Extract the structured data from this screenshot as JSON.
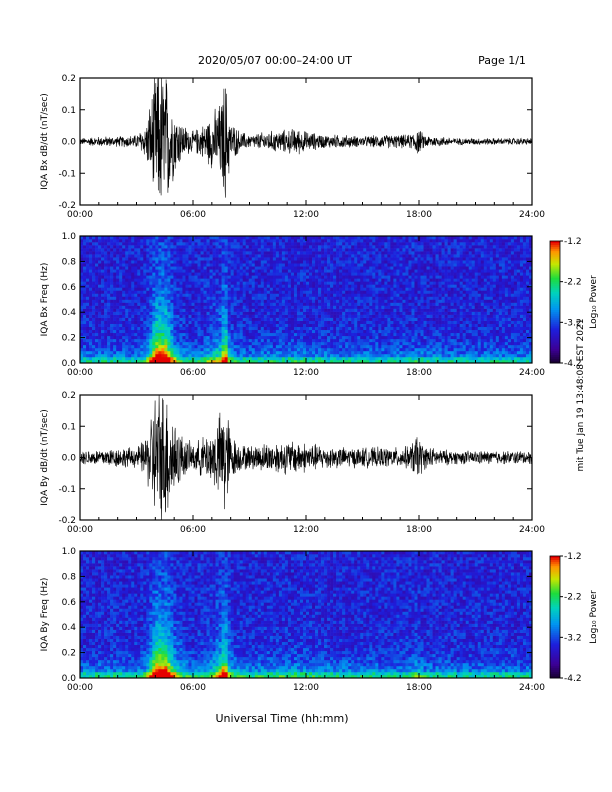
{
  "header": {
    "title": "2020/05/07  00:00–24:00 UT",
    "page": "Page 1/1"
  },
  "side_note": "mit Tue Jan 19 13:48:08 EST 2021",
  "footer": {
    "xlabel": "Universal Time (hh:mm)"
  },
  "colorbar": {
    "ticks": [
      "-1.2",
      "-2.2",
      "-3.2",
      "-4.2"
    ],
    "label": "Log₁₀ Power"
  },
  "chart_data": [
    {
      "type": "line",
      "title": "",
      "xlabel": "",
      "ylabel": "IQA Bx dB/dt (nT/sec)",
      "xticks": [
        "00:00",
        "06:00",
        "12:00",
        "18:00",
        "24:00"
      ],
      "yticks": [
        "0.2",
        "0.1",
        "0.0",
        "-0.1",
        "-0.2"
      ],
      "xlim": [
        0,
        24
      ],
      "ylim": [
        -0.2,
        0.2
      ],
      "envelope": {
        "x": [
          0,
          1,
          2,
          3,
          3.5,
          4.0,
          4.3,
          4.6,
          5.0,
          5.5,
          6,
          6.5,
          7.0,
          7.5,
          7.7,
          8.0,
          8.5,
          9,
          10,
          11,
          11.5,
          12,
          13,
          14,
          15,
          16,
          17,
          17.5,
          17.9,
          18.3,
          19,
          20,
          21,
          22,
          23,
          24
        ],
        "amp": [
          0.01,
          0.015,
          0.015,
          0.02,
          0.05,
          0.2,
          0.22,
          0.2,
          0.1,
          0.05,
          0.03,
          0.05,
          0.08,
          0.12,
          0.2,
          0.06,
          0.03,
          0.02,
          0.03,
          0.035,
          0.04,
          0.03,
          0.02,
          0.02,
          0.015,
          0.02,
          0.02,
          0.02,
          0.04,
          0.02,
          0.015,
          0.01,
          0.01,
          0.01,
          0.01,
          0.01
        ]
      }
    },
    {
      "type": "heatmap",
      "title": "",
      "xlabel": "",
      "ylabel": "IQA Bx Freq (Hz)",
      "xticks": [
        "00:00",
        "06:00",
        "12:00",
        "18:00",
        "24:00"
      ],
      "yticks": [
        "1.0",
        "0.8",
        "0.6",
        "0.4",
        "0.2",
        "0.0"
      ],
      "xlim": [
        0,
        24
      ],
      "ylim": [
        0,
        1.0
      ],
      "zlim": [
        -4.2,
        -1.2
      ]
    },
    {
      "type": "line",
      "title": "",
      "xlabel": "",
      "ylabel": "IQA By dB/dt (nT/sec)",
      "xticks": [
        "00:00",
        "06:00",
        "12:00",
        "18:00",
        "24:00"
      ],
      "yticks": [
        "0.2",
        "0.1",
        "0.0",
        "-0.1",
        "-0.2"
      ],
      "xlim": [
        0,
        24
      ],
      "ylim": [
        -0.2,
        0.2
      ],
      "envelope": {
        "x": [
          0,
          1,
          2,
          3,
          3.5,
          4.0,
          4.3,
          4.6,
          5.0,
          5.5,
          6,
          6.5,
          7.0,
          7.5,
          7.7,
          8.0,
          8.5,
          9,
          10,
          11,
          11.5,
          12,
          13,
          14,
          15,
          16,
          17,
          17.5,
          17.9,
          18.3,
          19,
          20,
          21,
          22,
          23,
          24
        ],
        "amp": [
          0.02,
          0.025,
          0.03,
          0.03,
          0.06,
          0.2,
          0.22,
          0.2,
          0.12,
          0.06,
          0.04,
          0.06,
          0.08,
          0.14,
          0.2,
          0.07,
          0.04,
          0.035,
          0.045,
          0.05,
          0.05,
          0.045,
          0.035,
          0.03,
          0.03,
          0.03,
          0.03,
          0.035,
          0.07,
          0.035,
          0.025,
          0.02,
          0.02,
          0.02,
          0.02,
          0.02
        ]
      }
    },
    {
      "type": "heatmap",
      "title": "",
      "xlabel": "",
      "ylabel": "IQA By Freq (Hz)",
      "xticks": [
        "00:00",
        "06:00",
        "12:00",
        "18:00",
        "24:00"
      ],
      "yticks": [
        "1.0",
        "0.8",
        "0.6",
        "0.4",
        "0.2",
        "0.0"
      ],
      "xlim": [
        0,
        24
      ],
      "ylim": [
        0,
        1.0
      ],
      "zlim": [
        -4.2,
        -1.2
      ]
    }
  ]
}
